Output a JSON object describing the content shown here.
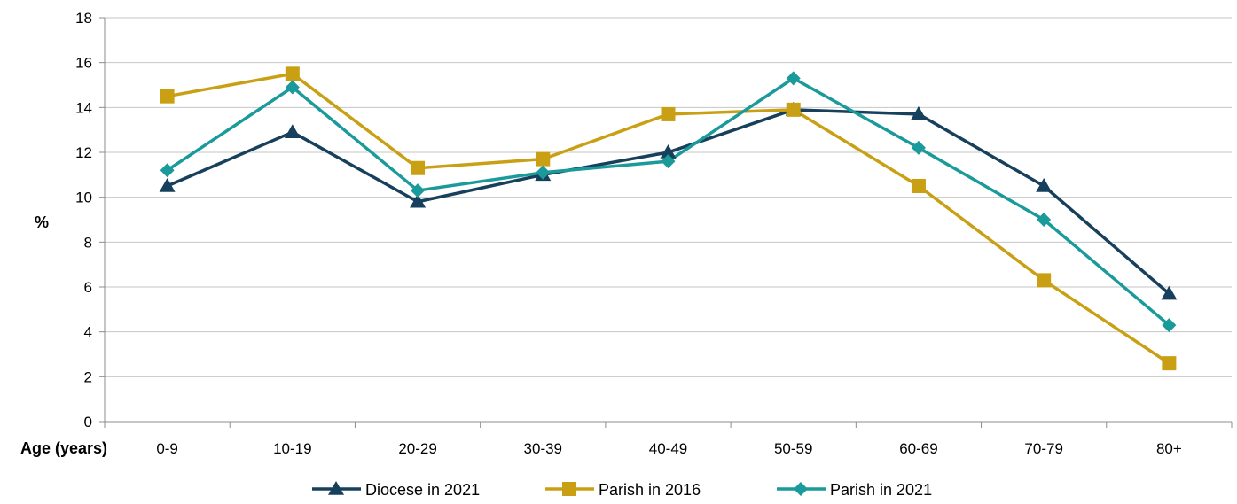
{
  "chart_data": {
    "type": "line",
    "title": "",
    "xlabel": "Age (years)",
    "ylabel": "%",
    "ylim": [
      0,
      18
    ],
    "yticks": [
      0,
      2,
      4,
      6,
      8,
      10,
      12,
      14,
      16,
      18
    ],
    "grid": "horizontal",
    "legend_position": "bottom",
    "categories": [
      "0-9",
      "10-19",
      "20-29",
      "30-39",
      "40-49",
      "50-59",
      "60-69",
      "70-79",
      "80+"
    ],
    "series": [
      {
        "name": "Diocese in 2021",
        "color": "#17405C",
        "marker": "triangle",
        "values": [
          10.5,
          12.9,
          9.8,
          11.0,
          12.0,
          13.9,
          13.7,
          10.5,
          5.7
        ]
      },
      {
        "name": "Parish in 2016",
        "color": "#C9A013",
        "marker": "square",
        "values": [
          14.5,
          15.5,
          11.3,
          11.7,
          13.7,
          13.9,
          10.5,
          6.3,
          2.6
        ]
      },
      {
        "name": "Parish in 2021",
        "color": "#1A9A9A",
        "marker": "diamond",
        "values": [
          11.2,
          14.9,
          10.3,
          11.1,
          11.6,
          15.3,
          12.2,
          9.0,
          4.3
        ]
      }
    ]
  }
}
